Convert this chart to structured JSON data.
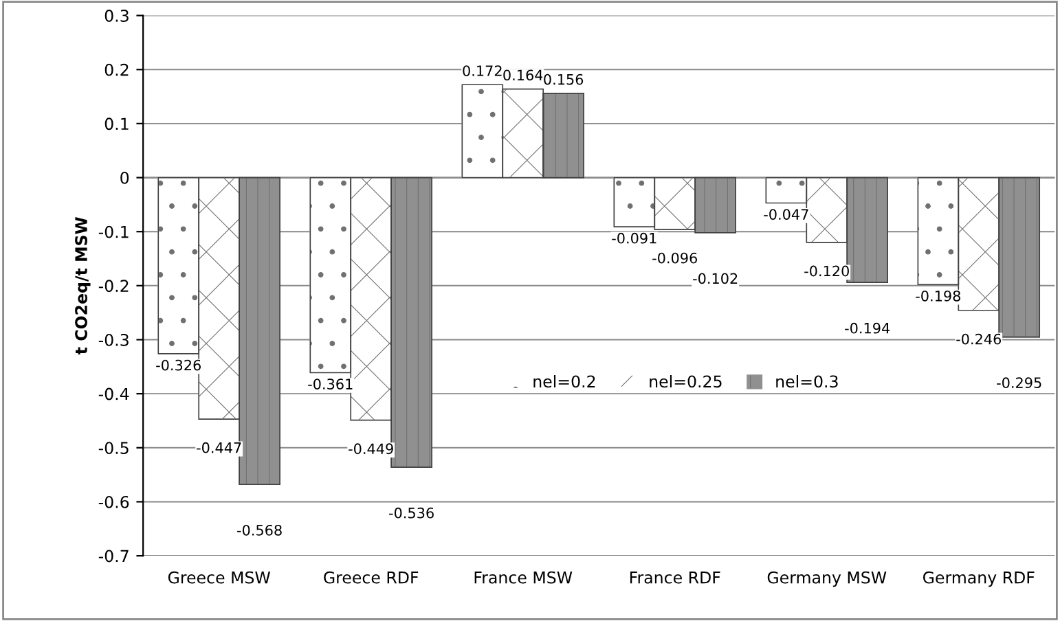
{
  "chart_data": {
    "type": "bar",
    "ylabel": "t CO2eq/t MSW",
    "categories": [
      "Greece MSW",
      "Greece RDF",
      "France MSW",
      "France RDF",
      "Germany MSW",
      "Germany RDF"
    ],
    "series": [
      {
        "name": "nel=0.2",
        "color": "#ffffff",
        "values": [
          -0.326,
          -0.361,
          0.172,
          -0.091,
          -0.047,
          -0.198
        ],
        "value_labels": [
          "-0.326",
          "-0.361",
          "0.172",
          "-0.091",
          "-0.047",
          "-0.198"
        ]
      },
      {
        "name": "nel=0.25",
        "color": "#ffffff",
        "values": [
          -0.447,
          -0.449,
          0.164,
          -0.096,
          -0.12,
          -0.246
        ],
        "value_labels": [
          "-0.447",
          "-0.449",
          "0.164",
          "-0.096",
          "-0.120",
          "-0.246"
        ]
      },
      {
        "name": "nel=0.3",
        "color": "#909090",
        "values": [
          -0.568,
          -0.536,
          0.156,
          -0.102,
          -0.194,
          -0.295
        ],
        "value_labels": [
          "-0.568",
          "-0.536",
          "0.156",
          "-0.102",
          "-0.194",
          "-0.295"
        ]
      }
    ],
    "ylim": [
      -0.7,
      0.3
    ],
    "yticks": [
      -0.7,
      -0.6,
      -0.5,
      -0.4,
      -0.3,
      -0.2,
      -0.1,
      0,
      0.1,
      0.2,
      0.3
    ],
    "grid": "y",
    "legend": "center"
  }
}
